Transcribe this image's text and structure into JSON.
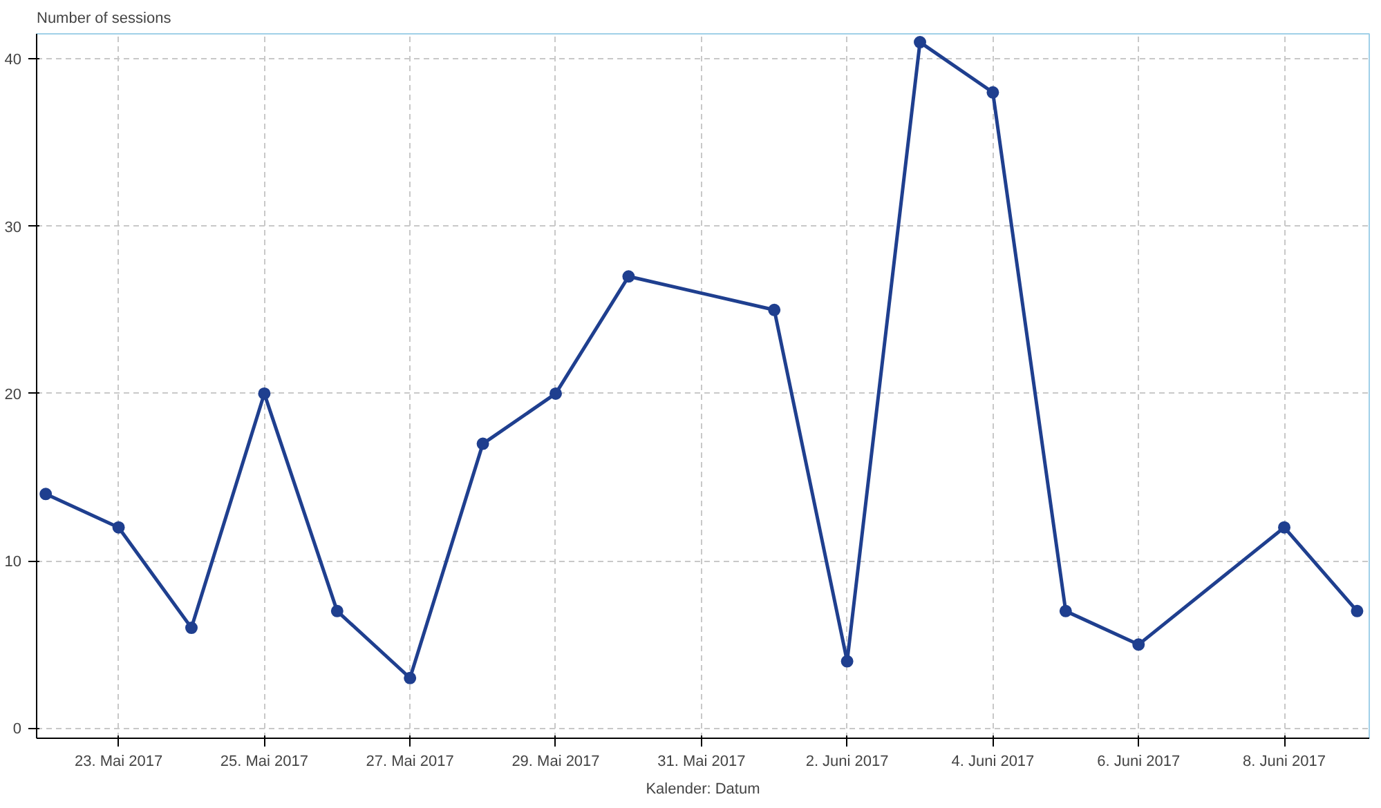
{
  "chart_data": {
    "type": "line",
    "title": "Number of sessions",
    "xlabel": "Kalender: Datum",
    "x": [
      "2017-05-22",
      "2017-05-23",
      "2017-05-24",
      "2017-05-25",
      "2017-05-26",
      "2017-05-27",
      "2017-05-28",
      "2017-05-29",
      "2017-05-30",
      "2017-06-01",
      "2017-06-02",
      "2017-06-03",
      "2017-06-04",
      "2017-06-05",
      "2017-06-06",
      "2017-06-08",
      "2017-06-09"
    ],
    "series": [
      {
        "color": "#1f3f8f",
        "values": [
          14,
          12,
          6,
          20,
          7,
          3,
          17,
          20,
          27,
          25,
          4,
          41,
          38,
          7,
          5,
          12,
          7
        ]
      }
    ],
    "xlim": [
      "2017-05-21T21:00",
      "2017-06-09T04:00"
    ],
    "ylim": [
      -0.6,
      41.5
    ],
    "xticks": [
      {
        "value": "2017-05-23",
        "label": "23. Mai 2017"
      },
      {
        "value": "2017-05-25",
        "label": "25. Mai 2017"
      },
      {
        "value": "2017-05-27",
        "label": "27. Mai 2017"
      },
      {
        "value": "2017-05-29",
        "label": "29. Mai 2017"
      },
      {
        "value": "2017-05-31",
        "label": "31. Mai 2017"
      },
      {
        "value": "2017-06-02",
        "label": "2. Juni 2017"
      },
      {
        "value": "2017-06-04",
        "label": "4. Juni 2017"
      },
      {
        "value": "2017-06-06",
        "label": "6. Juni 2017"
      },
      {
        "value": "2017-06-08",
        "label": "8. Juni 2017"
      }
    ],
    "yticks": [
      0,
      10,
      20,
      30,
      40
    ],
    "grid": true,
    "marker": "circle",
    "line_style": "solid"
  }
}
